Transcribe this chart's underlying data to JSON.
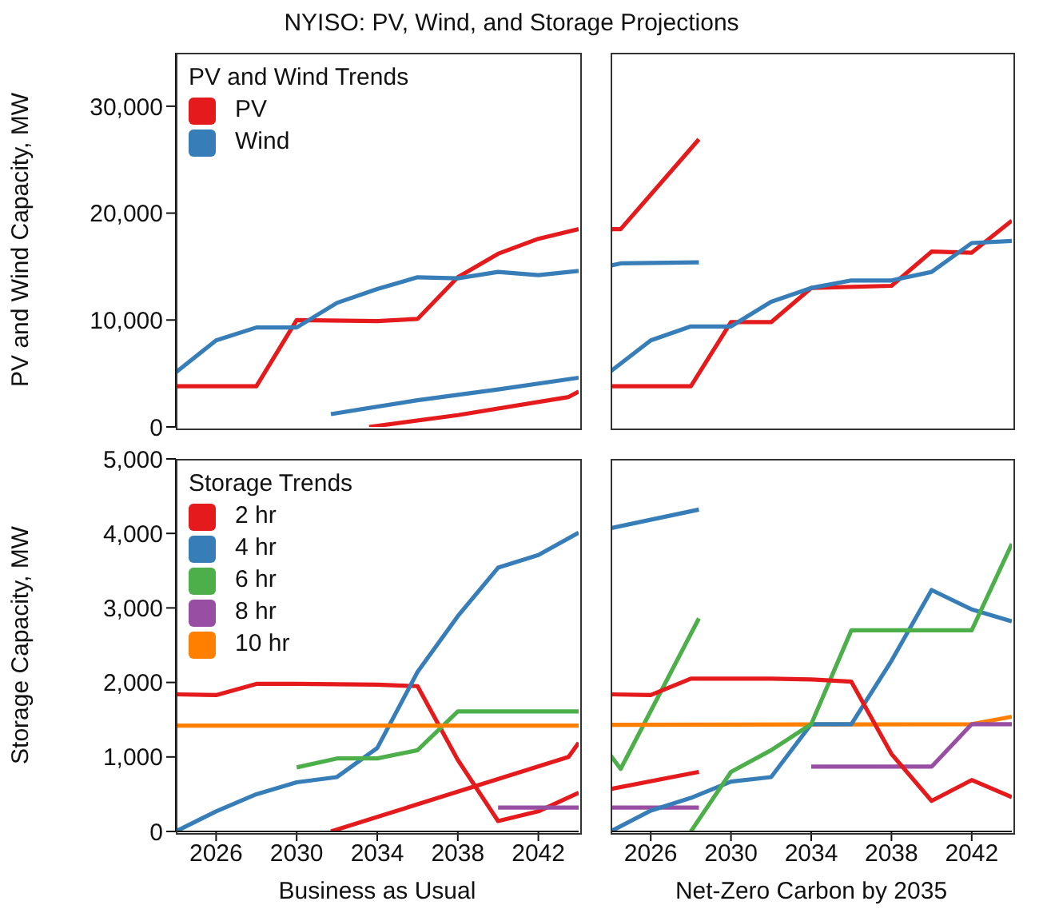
{
  "chart_data": [
    {
      "type": "line",
      "title": "NYISO: PV, Wind, and Storage Projections",
      "ylabel": "PV and Wind Capacity, MW",
      "legend_title": "PV and Wind Trends",
      "legend": "top left",
      "marker": "none",
      "line_style": "solid",
      "grid": false,
      "tick_labels": "y",
      "xlim": [
        2024,
        2044
      ],
      "ylim": [
        0,
        35000
      ],
      "yticks": [
        0,
        {
          "value": 10000,
          "label": "10,000"
        },
        {
          "value": 20000,
          "label": "20,000"
        },
        {
          "value": 30000,
          "label": "30,000"
        }
      ],
      "series": [
        {
          "name": "PV",
          "color": "#e41a1c",
          "x": [
            2024,
            2028,
            2030,
            2034,
            2036,
            2038,
            2040,
            2042,
            2044
          ],
          "values": [
            3800,
            3800,
            10000,
            9900,
            10100,
            14000,
            16200,
            17600,
            18500
          ]
        },
        {
          "name": "Wind",
          "color": "#377eb8",
          "x": [
            2024,
            2026,
            2028,
            2030,
            2032,
            2034,
            2036,
            2038,
            2040,
            2042,
            2044
          ],
          "values": [
            5100,
            8100,
            9300,
            9300,
            11600,
            12900,
            14000,
            13900,
            14500,
            14200,
            14600
          ]
        },
        {
          "color": "#377eb8",
          "x": [
            2031.7,
            2036,
            2040,
            2044
          ],
          "values": [
            1200,
            2500,
            3500,
            4600
          ]
        },
        {
          "color": "#e41a1c",
          "x": [
            2033.6,
            2038,
            2043.5,
            2044
          ],
          "values": [
            0,
            1100,
            2800,
            3300
          ]
        }
      ]
    },
    {
      "type": "line",
      "marker": "none",
      "line_style": "solid",
      "grid": false,
      "tick_labels": false,
      "xlim": [
        2024,
        2044
      ],
      "ylim": [
        0,
        35000
      ],
      "series": [
        {
          "color": "#e41a1c",
          "x": [
            2024,
            2024.5,
            2028.4
          ],
          "values": [
            18500,
            18500,
            26900
          ]
        },
        {
          "color": "#377eb8",
          "x": [
            2024,
            2024.5,
            2028.4
          ],
          "values": [
            15100,
            15300,
            15400
          ]
        },
        {
          "color": "#e41a1c",
          "x": [
            2024,
            2028,
            2030,
            2032,
            2034,
            2038,
            2040,
            2042,
            2044
          ],
          "values": [
            3800,
            3800,
            9800,
            9800,
            13000,
            13200,
            16400,
            16300,
            19300
          ]
        },
        {
          "color": "#377eb8",
          "x": [
            2024,
            2026,
            2028,
            2030,
            2032,
            2034,
            2036,
            2038,
            2040,
            2042,
            2044
          ],
          "values": [
            5200,
            8100,
            9400,
            9400,
            11700,
            13000,
            13700,
            13700,
            14500,
            17200,
            17400
          ]
        }
      ]
    },
    {
      "type": "line",
      "ylabel": "Storage Capacity, MW",
      "xlabel": "Business as Usual",
      "legend_title": "Storage Trends",
      "legend": "top left",
      "marker": "none",
      "line_style": "solid",
      "grid": false,
      "xlim": [
        2024,
        2044
      ],
      "ylim": [
        0,
        5000
      ],
      "xticks": [
        2026,
        2030,
        2034,
        2038,
        2042
      ],
      "yticks": [
        0,
        {
          "value": 1000,
          "label": "1,000"
        },
        {
          "value": 2000,
          "label": "2,000"
        },
        {
          "value": 3000,
          "label": "3,000"
        },
        {
          "value": 4000,
          "label": "4,000"
        },
        {
          "value": 5000,
          "label": "5,000"
        }
      ],
      "series": [
        {
          "name": "2 hr",
          "color": "#e41a1c",
          "x": [
            2024,
            2026,
            2028,
            2030,
            2034,
            2036,
            2038,
            2040,
            2042,
            2044
          ],
          "values": [
            1840,
            1830,
            1980,
            1980,
            1970,
            1950,
            960,
            140,
            270,
            520
          ]
        },
        {
          "name": "4 hr",
          "color": "#377eb8",
          "x": [
            2024,
            2026,
            2028,
            2030,
            2032,
            2034,
            2036,
            2038,
            2040,
            2042,
            2044
          ],
          "values": [
            0,
            270,
            500,
            660,
            730,
            1120,
            2140,
            2890,
            3540,
            3710,
            4010
          ]
        },
        {
          "name": "6 hr",
          "color": "#4daf4a",
          "x": [
            2030,
            2032,
            2034,
            2036,
            2038,
            2040,
            2044
          ],
          "values": [
            860,
            980,
            980,
            1090,
            1610,
            1610,
            1610
          ]
        },
        {
          "name": "8 hr",
          "color": "#984ea3",
          "x": [
            2040,
            2044
          ],
          "values": [
            320,
            320
          ]
        },
        {
          "name": "10 hr",
          "color": "#ff7f00",
          "x": [
            2024,
            2044
          ],
          "values": [
            1420,
            1420
          ]
        },
        {
          "color": "#e41a1c",
          "x": [
            2031.7,
            2043.5,
            2044
          ],
          "values": [
            0,
            1000,
            1190
          ]
        }
      ]
    },
    {
      "type": "line",
      "xlabel": "Net-Zero Carbon by 2035",
      "marker": "none",
      "line_style": "solid",
      "grid": false,
      "tick_labels": "x",
      "xlim": [
        2024,
        2044
      ],
      "ylim": [
        0,
        5000
      ],
      "xticks": [
        2026,
        2030,
        2034,
        2038,
        2042
      ],
      "series": [
        {
          "color": "#377eb8",
          "x": [
            2024,
            2028.4
          ],
          "values": [
            4070,
            4320
          ]
        },
        {
          "color": "#4daf4a",
          "x": [
            2024,
            2024.5,
            2028.4
          ],
          "values": [
            1020,
            840,
            2860
          ]
        },
        {
          "color": "#e41a1c",
          "x": [
            2024,
            2028.4
          ],
          "values": [
            570,
            800
          ]
        },
        {
          "color": "#984ea3",
          "x": [
            2024,
            2028.4
          ],
          "values": [
            320,
            320
          ]
        },
        {
          "color": "#ff7f00",
          "x": [
            2024,
            2042,
            2044
          ],
          "values": [
            1430,
            1440,
            1540
          ]
        },
        {
          "color": "#377eb8",
          "x": [
            2024,
            2026,
            2028,
            2030,
            2032,
            2034,
            2036,
            2038,
            2040,
            2042,
            2044
          ],
          "values": [
            0,
            280,
            450,
            670,
            730,
            1440,
            1440,
            2290,
            3240,
            2980,
            2820
          ]
        },
        {
          "color": "#4daf4a",
          "x": [
            2028,
            2030,
            2032,
            2034,
            2036,
            2042,
            2044
          ],
          "values": [
            0,
            800,
            1090,
            1440,
            2700,
            2700,
            3860
          ]
        },
        {
          "color": "#984ea3",
          "x": [
            2034,
            2040,
            2042,
            2044
          ],
          "values": [
            870,
            870,
            1440,
            1440
          ]
        },
        {
          "color": "#e41a1c",
          "x": [
            2024,
            2026,
            2028,
            2032,
            2034,
            2036,
            2038,
            2040,
            2042,
            2044
          ],
          "values": [
            1840,
            1830,
            2050,
            2050,
            2040,
            2010,
            1040,
            410,
            690,
            460
          ]
        }
      ]
    }
  ]
}
